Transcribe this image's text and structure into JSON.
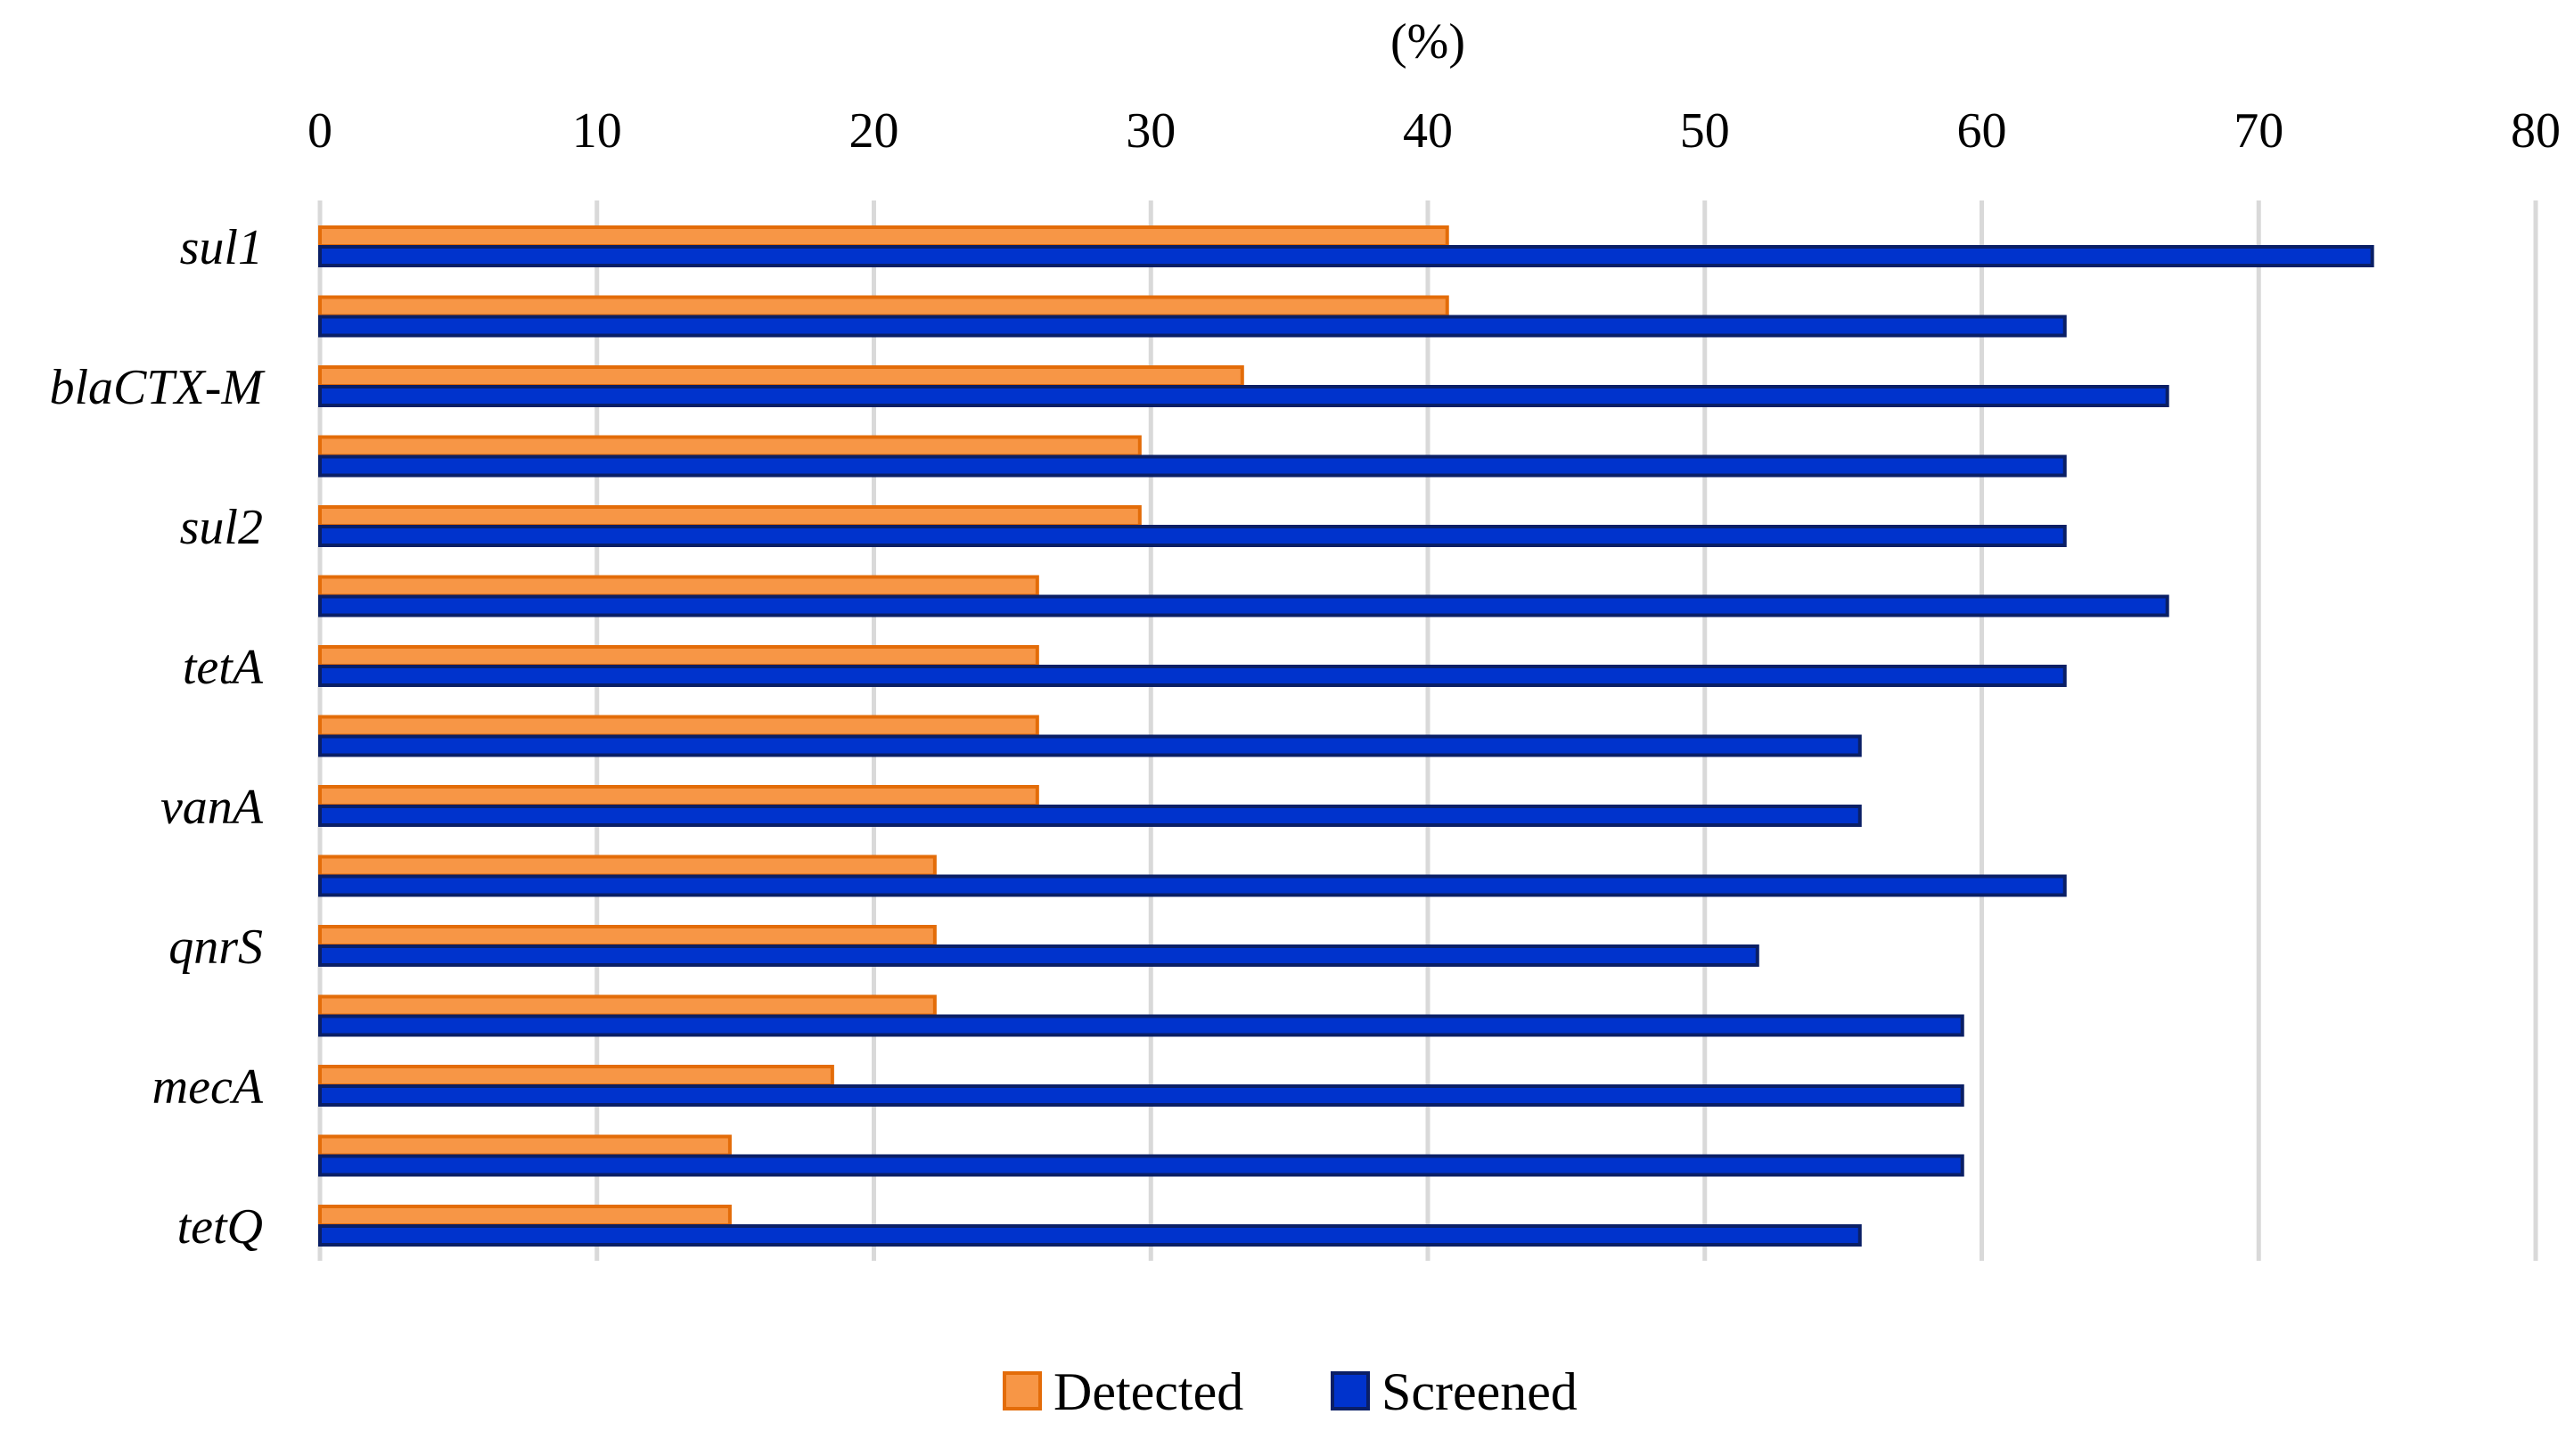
{
  "chart_data": {
    "type": "bar",
    "orientation": "horizontal",
    "title": "",
    "xlabel": "(%)",
    "ylabel": "",
    "xlim": [
      0,
      80
    ],
    "x_ticks": [
      "0",
      "10",
      "20",
      "30",
      "40",
      "50",
      "60",
      "70",
      "80"
    ],
    "grid": true,
    "legend_position": "bottom",
    "category_labels_shown": [
      "sul1",
      "blaCTX-M",
      "sul2",
      "tetA",
      "vanA",
      "qnrS",
      "mecA",
      "tetQ"
    ],
    "bar_pairs": 15,
    "series": [
      {
        "name": "Detected",
        "color": "#f79646",
        "border": "#e36c09",
        "values": [
          40.7,
          40.7,
          33.3,
          29.6,
          29.6,
          25.9,
          25.9,
          25.9,
          25.9,
          22.2,
          22.2,
          22.2,
          18.5,
          14.8,
          14.8
        ]
      },
      {
        "name": "Screened",
        "color": "#0033cc",
        "border": "#0a1f66",
        "values": [
          74.1,
          63.0,
          66.7,
          63.0,
          63.0,
          66.7,
          63.0,
          55.6,
          55.6,
          63.0,
          51.9,
          59.3,
          59.3,
          59.3,
          55.6
        ]
      }
    ]
  }
}
